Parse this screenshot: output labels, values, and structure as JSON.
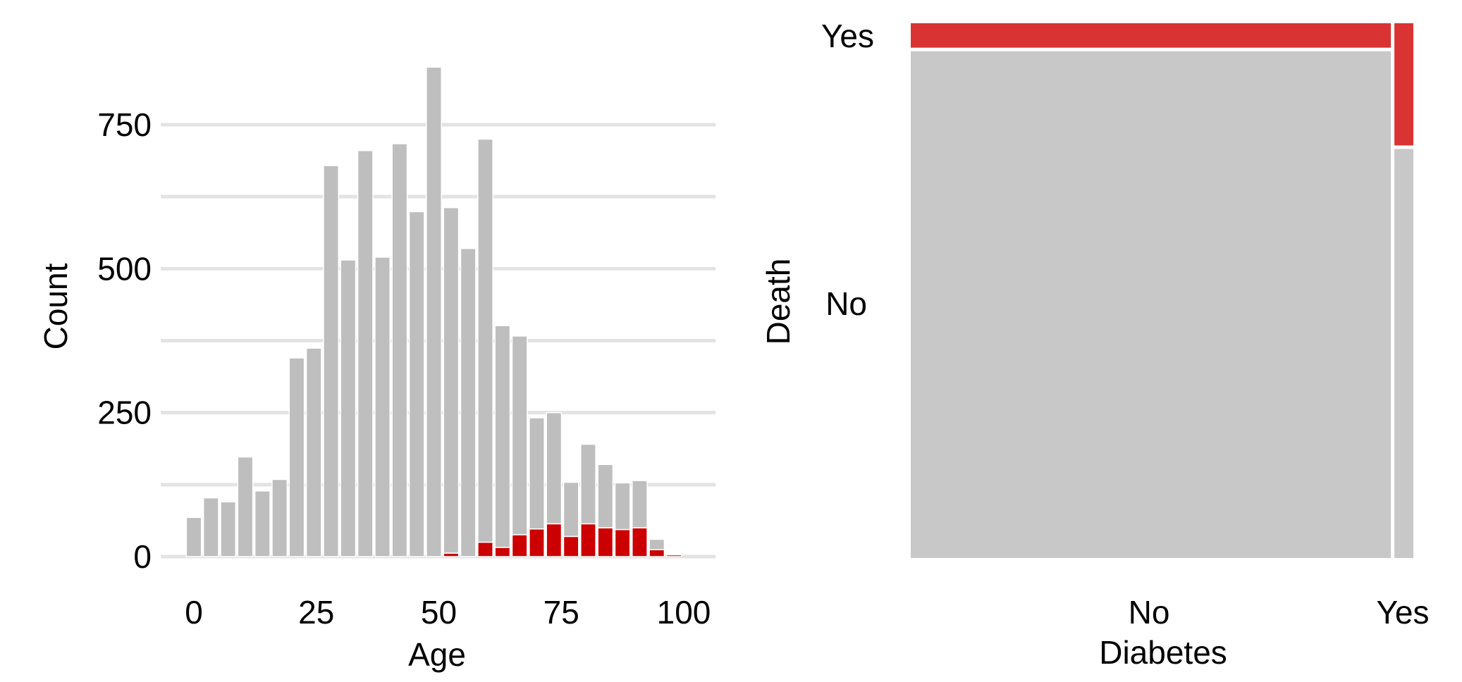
{
  "chart_data": [
    {
      "type": "bar",
      "stacked": true,
      "xlabel": "Age",
      "ylabel": "Count",
      "xlim": [
        -5,
        105
      ],
      "ylim": [
        0,
        870
      ],
      "x_ticks": [
        0,
        25,
        50,
        75,
        100
      ],
      "y_ticks": [
        0,
        250,
        500,
        750
      ],
      "grid": true,
      "legend": "none",
      "bin_width": 3.5,
      "x": [
        0,
        3.5,
        7,
        10.5,
        14,
        17.5,
        21,
        24.5,
        28,
        31.5,
        35,
        38.5,
        42,
        45.5,
        49,
        52.5,
        56,
        59.5,
        63,
        66.5,
        70,
        73.5,
        77,
        80.5,
        84,
        87.5,
        91,
        94.5,
        98
      ],
      "series": [
        {
          "color": "#cc0000",
          "values": [
            0,
            0,
            0,
            0,
            0,
            0,
            0,
            0,
            0,
            0,
            0,
            0,
            0,
            0,
            0,
            6,
            0,
            25,
            16,
            38,
            48,
            57,
            35,
            57,
            50,
            47,
            50,
            12,
            3
          ]
        },
        {
          "color": "#bebebe",
          "values": [
            68,
            102,
            95,
            173,
            114,
            134,
            345,
            362,
            679,
            515,
            705,
            520,
            717,
            599,
            850,
            600,
            535,
            700,
            385,
            345,
            193,
            193,
            94,
            138,
            110,
            81,
            82,
            18,
            0
          ]
        }
      ]
    },
    {
      "type": "mosaic",
      "xlabel": "Diabetes",
      "ylabel": "Death",
      "x_categories": [
        "No",
        "Yes"
      ],
      "y_categories": [
        "No",
        "Yes"
      ],
      "x_proportions": [
        0.962,
        0.038
      ],
      "yes_share": [
        0.046,
        0.23
      ],
      "colors": {
        "No": "#c8c8c8",
        "Yes": "#d93333"
      }
    }
  ]
}
